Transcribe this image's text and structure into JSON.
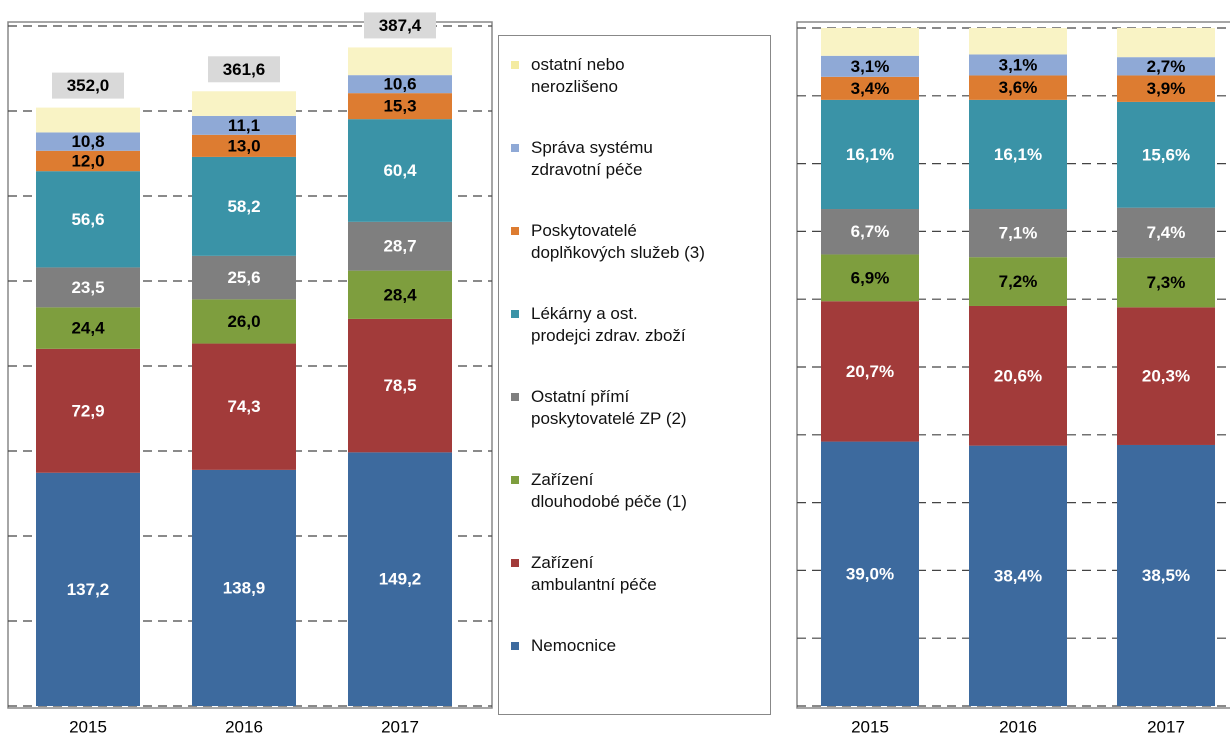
{
  "chart_data": [
    {
      "type": "stacked-bar",
      "categories": [
        "2015",
        "2016",
        "2017"
      ],
      "ylim": [
        0,
        400
      ],
      "yticks": [
        0,
        50,
        100,
        150,
        200,
        250,
        300,
        350,
        400
      ],
      "grid": true,
      "series": [
        {
          "name": "Nemocnice",
          "color": "#3d6a9e",
          "label_color": "#ffffff",
          "values": [
            137.2,
            138.9,
            149.2
          ],
          "value_labels": [
            "137,2",
            "138,9",
            "149,2"
          ]
        },
        {
          "name": "Zařízení\nambulantní péče",
          "color": "#a23b3a",
          "label_color": "#ffffff",
          "values": [
            72.9,
            74.3,
            78.5
          ],
          "value_labels": [
            "72,9",
            "74,3",
            "78,5"
          ]
        },
        {
          "name": "Zařízení\ndlouhodobé péče (1)",
          "color": "#7e9e3e",
          "label_color": "#000000",
          "values": [
            24.4,
            26.0,
            28.4
          ],
          "value_labels": [
            "24,4",
            "26,0",
            "28,4"
          ]
        },
        {
          "name": "Ostatní přímí\nposkytovatelé ZP (2)",
          "color": "#7f7f7f",
          "label_color": "#ffffff",
          "values": [
            23.5,
            25.6,
            28.7
          ],
          "value_labels": [
            "23,5",
            "25,6",
            "28,7"
          ]
        },
        {
          "name": "Lékárny a ost.\nprodejci zdrav. zboží",
          "color": "#3a93a7",
          "label_color": "#ffffff",
          "values": [
            56.6,
            58.2,
            60.4
          ],
          "value_labels": [
            "56,6",
            "58,2",
            "60,4"
          ]
        },
        {
          "name": "Poskytovatelé\ndoplňkových služeb (3)",
          "color": "#dd7c31",
          "label_color": "#000000",
          "values": [
            12.0,
            13.0,
            15.3
          ],
          "value_labels": [
            "12,0",
            "13,0",
            "15,3"
          ]
        },
        {
          "name": "Správa systému\nzdravotní péče",
          "color": "#8fa9d6",
          "label_color": "#000000",
          "values": [
            10.8,
            11.1,
            10.6
          ],
          "value_labels": [
            "10,8",
            "11,1",
            "10,6"
          ]
        },
        {
          "name": "ostatní nebo\nnerozlišeno",
          "color": "#f9f3c5",
          "values": [
            14.6,
            14.5,
            16.3
          ]
        }
      ],
      "totals": [
        352.0,
        361.6,
        387.4
      ],
      "total_labels": [
        "352,0",
        "361,6",
        "387,4"
      ]
    },
    {
      "type": "stacked-bar",
      "categories": [
        "2015",
        "2016",
        "2017"
      ],
      "ylim": [
        0,
        100
      ],
      "yticks": [
        0,
        10,
        20,
        30,
        40,
        50,
        60,
        70,
        80,
        90,
        100
      ],
      "grid": true,
      "series": [
        {
          "color": "#3d6a9e",
          "label_color": "#ffffff",
          "values": [
            39.0,
            38.4,
            38.5
          ],
          "value_labels": [
            "39,0%",
            "38,4%",
            "38,5%"
          ]
        },
        {
          "color": "#a23b3a",
          "label_color": "#ffffff",
          "values": [
            20.7,
            20.6,
            20.3
          ],
          "value_labels": [
            "20,7%",
            "20,6%",
            "20,3%"
          ]
        },
        {
          "color": "#7e9e3e",
          "label_color": "#000000",
          "values": [
            6.9,
            7.2,
            7.3
          ],
          "value_labels": [
            "6,9%",
            "7,2%",
            "7,3%"
          ]
        },
        {
          "color": "#7f7f7f",
          "label_color": "#ffffff",
          "values": [
            6.7,
            7.1,
            7.4
          ],
          "value_labels": [
            "6,7%",
            "7,1%",
            "7,4%"
          ]
        },
        {
          "color": "#3a93a7",
          "label_color": "#ffffff",
          "values": [
            16.1,
            16.1,
            15.6
          ],
          "value_labels": [
            "16,1%",
            "16,1%",
            "15,6%"
          ]
        },
        {
          "color": "#dd7c31",
          "label_color": "#000000",
          "values": [
            3.4,
            3.6,
            3.9
          ],
          "value_labels": [
            "3,4%",
            "3,6%",
            "3,9%"
          ]
        },
        {
          "color": "#8fa9d6",
          "label_color": "#000000",
          "values": [
            3.1,
            3.1,
            2.7
          ],
          "value_labels": [
            "3,1%",
            "3,1%",
            "2,7%"
          ]
        },
        {
          "color": "#f9f3c5",
          "values": [
            4.1,
            3.9,
            4.3
          ]
        }
      ]
    }
  ]
}
